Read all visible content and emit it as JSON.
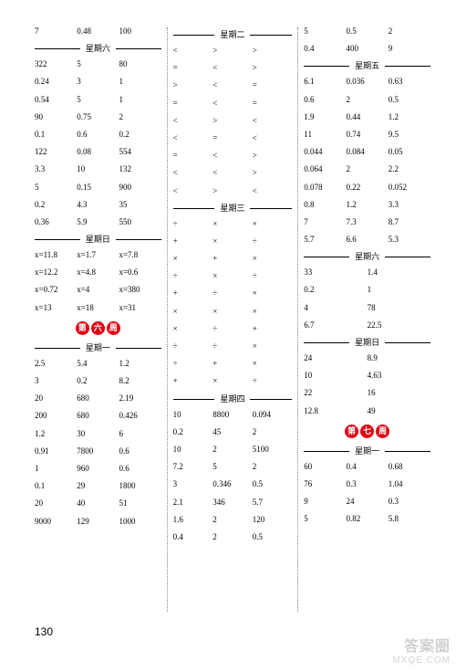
{
  "pageNumber": "130",
  "watermark": {
    "line1": "答案圈",
    "line2": "MXQE.COM"
  },
  "weekLabels": {
    "six": "第六周",
    "seven": "第七周"
  },
  "dayLabels": {
    "sat": "星期六",
    "sun": "星期日",
    "mon": "星期一",
    "tue": "星期二",
    "wed": "星期三",
    "thu": "星期四",
    "fri": "星期五"
  },
  "col1": {
    "top": [
      [
        "7",
        "0.48",
        "100"
      ]
    ],
    "sat": [
      [
        "322",
        "5",
        "80"
      ],
      [
        "0.24",
        "3",
        "1"
      ],
      [
        "0.54",
        "5",
        "1"
      ],
      [
        "90",
        "0.75",
        "2"
      ],
      [
        "0.1",
        "0.6",
        "0.2"
      ],
      [
        "122",
        "0.08",
        "554"
      ],
      [
        "3.3",
        "10",
        "132"
      ],
      [
        "5",
        "0.15",
        "900"
      ],
      [
        "0.2",
        "4.3",
        "35"
      ],
      [
        "0.36",
        "5.9",
        "550"
      ]
    ],
    "sun": [
      [
        "x=11.8",
        "x=1.7",
        "x=7.8"
      ],
      [
        "x=12.2",
        "x=4.8",
        "x=0.6"
      ],
      [
        "x=0.72",
        "x=4",
        "x=380"
      ],
      [
        "x=13",
        "x=18",
        "x=31"
      ]
    ],
    "mon": [
      [
        "2.5",
        "5.4",
        "1.2"
      ],
      [
        "3",
        "0.2",
        "8.2"
      ],
      [
        "20",
        "680",
        "2.19"
      ],
      [
        "200",
        "680",
        "0.426"
      ],
      [
        "1.2",
        "30",
        "6"
      ],
      [
        "0.91",
        "7800",
        "0.6"
      ],
      [
        "1",
        "960",
        "0.6"
      ],
      [
        "0.1",
        "29",
        "1800"
      ],
      [
        "20",
        "40",
        "51"
      ],
      [
        "9000",
        "129",
        "1000"
      ]
    ]
  },
  "col2": {
    "tue": [
      [
        "<",
        ">",
        ">"
      ],
      [
        "=",
        "<",
        ">"
      ],
      [
        ">",
        "<",
        "="
      ],
      [
        "=",
        "<",
        "="
      ],
      [
        "<",
        ">",
        "<"
      ],
      [
        "<",
        "=",
        "<"
      ],
      [
        "=",
        "<",
        ">"
      ],
      [
        "<",
        "<",
        ">"
      ],
      [
        "<",
        ">",
        "<"
      ]
    ],
    "wed": [
      [
        "÷",
        "×",
        "×"
      ],
      [
        "+",
        "×",
        "÷"
      ],
      [
        "×",
        "+",
        "×"
      ],
      [
        "÷",
        "×",
        "÷"
      ],
      [
        "+",
        "÷",
        "×"
      ],
      [
        "×",
        "×",
        "×"
      ],
      [
        "×",
        "÷",
        "+"
      ],
      [
        "÷",
        "÷",
        "×"
      ],
      [
        "÷",
        "+",
        "×"
      ],
      [
        "+",
        "×",
        "÷"
      ]
    ],
    "thu": [
      [
        "10",
        "8800",
        "0.094"
      ],
      [
        "0.2",
        "45",
        "2"
      ],
      [
        "10",
        "2",
        "5100"
      ],
      [
        "7.2",
        "5",
        "2"
      ],
      [
        "3",
        "0.346",
        "0.5"
      ],
      [
        "2.1",
        "346",
        "5.7"
      ],
      [
        "1.6",
        "2",
        "120"
      ],
      [
        "0.4",
        "2",
        "0.5"
      ]
    ]
  },
  "col3": {
    "top": [
      [
        "5",
        "0.5",
        "2"
      ],
      [
        "0.4",
        "400",
        "9"
      ]
    ],
    "fri": [
      [
        "6.1",
        "0.036",
        "0.63"
      ],
      [
        "0.6",
        "2",
        "0.5"
      ],
      [
        "1.9",
        "0.44",
        "1.2"
      ],
      [
        "11",
        "0.74",
        "9.5"
      ],
      [
        "0.044",
        "0.084",
        "0.05"
      ],
      [
        "0.064",
        "2",
        "2.2"
      ],
      [
        "0.078",
        "0.22",
        "0.052"
      ],
      [
        "0.8",
        "1.2",
        "3.3"
      ],
      [
        "7",
        "7.3",
        "8.7"
      ],
      [
        "5.7",
        "6.6",
        "5.3"
      ]
    ],
    "sat2": [
      [
        "33",
        "1.4"
      ],
      [
        "0.2",
        "1"
      ],
      [
        "4",
        "78"
      ],
      [
        "6.7",
        "22.5"
      ]
    ],
    "sun2": [
      [
        "24",
        "8.9"
      ],
      [
        "10",
        "4.63"
      ],
      [
        "22",
        "16"
      ],
      [
        "12.8",
        "49"
      ]
    ],
    "mon2": [
      [
        "60",
        "0.4",
        "0.68"
      ],
      [
        "76",
        "0.3",
        "1.04"
      ],
      [
        "9",
        "24",
        "0.3"
      ],
      [
        "5",
        "0.82",
        "5.8"
      ]
    ]
  }
}
